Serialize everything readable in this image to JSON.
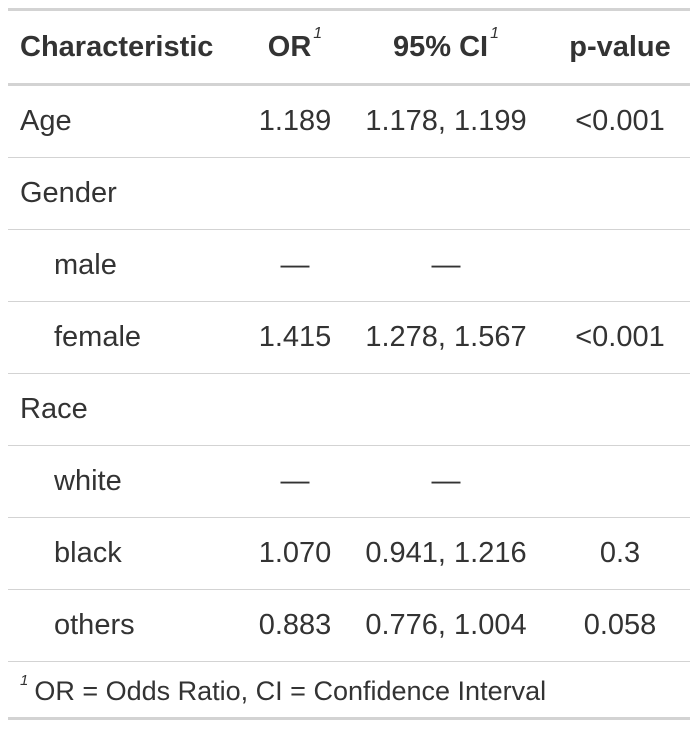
{
  "table": {
    "headers": {
      "characteristic": "Characteristic",
      "or": "OR",
      "or_note": "1",
      "ci": "95% CI",
      "ci_note": "1",
      "pvalue": "p-value"
    },
    "rows": [
      {
        "label": "Age",
        "or": "1.189",
        "ci": "1.178, 1.199",
        "p": "<0.001",
        "indent": false
      },
      {
        "label": "Gender",
        "or": "",
        "ci": "",
        "p": "",
        "indent": false
      },
      {
        "label": "male",
        "or": "—",
        "ci": "—",
        "p": "",
        "indent": true
      },
      {
        "label": "female",
        "or": "1.415",
        "ci": "1.278, 1.567",
        "p": "<0.001",
        "indent": true
      },
      {
        "label": "Race",
        "or": "",
        "ci": "",
        "p": "",
        "indent": false
      },
      {
        "label": "white",
        "or": "—",
        "ci": "—",
        "p": "",
        "indent": true
      },
      {
        "label": "black",
        "or": "1.070",
        "ci": "0.941, 1.216",
        "p": "0.3",
        "indent": true
      },
      {
        "label": "others",
        "or": "0.883",
        "ci": "0.776, 1.004",
        "p": "0.058",
        "indent": true
      }
    ],
    "footnote": {
      "mark": "1",
      "text": "OR = Odds Ratio, CI = Confidence Interval"
    }
  },
  "colors": {
    "text": "#333333",
    "border": "#d3d3d3"
  }
}
